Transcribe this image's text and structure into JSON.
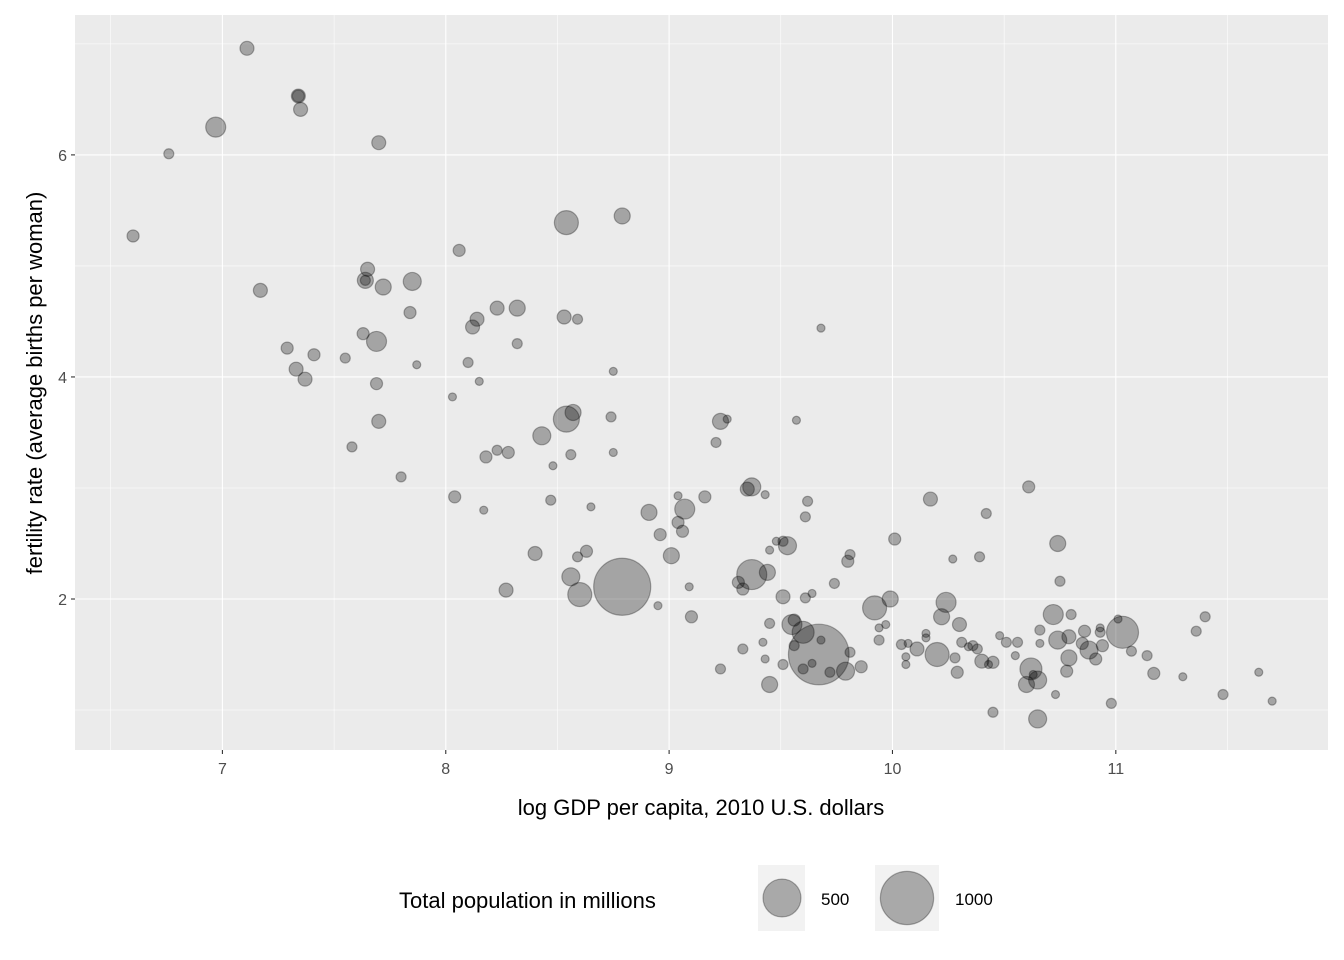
{
  "chart_data": {
    "type": "scatter",
    "title": "",
    "xlabel": "log GDP per capita, 2010 U.S. dollars",
    "ylabel": "fertility rate (average births per woman)",
    "xlim": [
      6.34,
      11.95
    ],
    "ylim": [
      0.64,
      7.26
    ],
    "x_ticks": [
      7,
      8,
      9,
      10,
      11
    ],
    "y_ticks": [
      2,
      4,
      6
    ],
    "grid": true,
    "point_color": "#000000",
    "point_alpha": 0.3,
    "legend": {
      "title": "Total population in millions",
      "placement": "bottom",
      "entries": [
        {
          "label": "500",
          "value": 500
        },
        {
          "label": "1000",
          "value": 1000
        }
      ]
    },
    "points": [
      [
        6.6,
        5.27,
        39
      ],
      [
        6.76,
        6.01,
        23
      ],
      [
        6.97,
        6.25,
        130
      ],
      [
        7.11,
        6.96,
        57
      ],
      [
        7.34,
        6.53,
        57
      ],
      [
        7.34,
        6.53,
        39
      ],
      [
        7.35,
        6.41,
        57
      ],
      [
        7.7,
        6.11,
        57
      ],
      [
        8.06,
        5.14,
        39
      ],
      [
        7.17,
        4.78,
        57
      ],
      [
        7.65,
        4.97,
        57
      ],
      [
        7.64,
        4.87,
        79
      ],
      [
        7.64,
        4.87,
        23
      ],
      [
        7.72,
        4.81,
        79
      ],
      [
        7.85,
        4.86,
        103
      ],
      [
        7.84,
        4.58,
        39
      ],
      [
        8.23,
        4.62,
        57
      ],
      [
        8.32,
        4.62,
        79
      ],
      [
        8.14,
        4.52,
        57
      ],
      [
        8.12,
        4.45,
        57
      ],
      [
        8.32,
        4.3,
        23
      ],
      [
        7.63,
        4.39,
        39
      ],
      [
        7.69,
        4.32,
        130
      ],
      [
        7.29,
        4.26,
        39
      ],
      [
        7.41,
        4.2,
        39
      ],
      [
        7.55,
        4.17,
        23
      ],
      [
        7.33,
        4.07,
        57
      ],
      [
        7.37,
        3.98,
        57
      ],
      [
        7.69,
        3.94,
        39
      ],
      [
        7.87,
        4.11,
        10
      ],
      [
        8.1,
        4.13,
        23
      ],
      [
        8.15,
        3.96,
        10
      ],
      [
        8.03,
        3.82,
        10
      ],
      [
        7.7,
        3.6,
        57
      ],
      [
        7.58,
        3.37,
        23
      ],
      [
        7.8,
        3.1,
        23
      ],
      [
        8.04,
        2.92,
        39
      ],
      [
        8.17,
        2.8,
        10
      ],
      [
        8.18,
        3.28,
        39
      ],
      [
        8.23,
        3.34,
        23
      ],
      [
        8.28,
        3.32,
        39
      ],
      [
        8.43,
        3.47,
        103
      ],
      [
        8.48,
        3.2,
        10
      ],
      [
        8.47,
        2.89,
        23
      ],
      [
        8.56,
        3.3,
        23
      ],
      [
        8.54,
        3.62,
        229
      ],
      [
        8.57,
        3.68,
        79
      ],
      [
        8.54,
        5.39,
        193
      ],
      [
        8.79,
        5.45,
        79
      ],
      [
        8.53,
        4.54,
        57
      ],
      [
        8.59,
        4.52,
        23
      ],
      [
        8.75,
        4.05,
        10
      ],
      [
        8.74,
        3.64,
        23
      ],
      [
        8.75,
        3.32,
        10
      ],
      [
        8.65,
        2.83,
        10
      ],
      [
        8.4,
        2.41,
        57
      ],
      [
        8.59,
        2.38,
        23
      ],
      [
        8.63,
        2.43,
        39
      ],
      [
        8.56,
        2.2,
        103
      ],
      [
        8.6,
        2.04,
        193
      ],
      [
        8.27,
        2.08,
        57
      ],
      [
        8.79,
        2.11,
        1150
      ],
      [
        8.95,
        1.94,
        10
      ],
      [
        8.91,
        2.78,
        79
      ],
      [
        8.96,
        2.58,
        39
      ],
      [
        9.01,
        2.39,
        79
      ],
      [
        9.04,
        2.93,
        10
      ],
      [
        9.07,
        2.81,
        130
      ],
      [
        9.04,
        2.69,
        39
      ],
      [
        9.06,
        2.61,
        39
      ],
      [
        9.09,
        2.11,
        10
      ],
      [
        9.1,
        1.84,
        39
      ],
      [
        9.16,
        2.92,
        39
      ],
      [
        9.21,
        3.41,
        23
      ],
      [
        9.23,
        3.6,
        79
      ],
      [
        9.26,
        3.62,
        10
      ],
      [
        9.23,
        1.37,
        23
      ],
      [
        9.37,
        3.01,
        103
      ],
      [
        9.35,
        2.99,
        57
      ],
      [
        9.43,
        2.94,
        10
      ],
      [
        9.57,
        3.61,
        10
      ],
      [
        9.68,
        4.44,
        10
      ],
      [
        9.62,
        2.88,
        23
      ],
      [
        9.61,
        2.74,
        23
      ],
      [
        9.48,
        2.52,
        10
      ],
      [
        9.51,
        2.52,
        23
      ],
      [
        9.53,
        2.48,
        103
      ],
      [
        9.45,
        2.44,
        10
      ],
      [
        9.37,
        2.22,
        309
      ],
      [
        9.44,
        2.24,
        79
      ],
      [
        9.31,
        2.15,
        39
      ],
      [
        9.33,
        2.09,
        39
      ],
      [
        9.51,
        2.02,
        57
      ],
      [
        9.61,
        2.01,
        23
      ],
      [
        9.64,
        2.05,
        10
      ],
      [
        9.74,
        2.14,
        23
      ],
      [
        9.8,
        2.34,
        39
      ],
      [
        9.81,
        2.4,
        23
      ],
      [
        9.45,
        1.78,
        23
      ],
      [
        9.55,
        1.77,
        130
      ],
      [
        9.56,
        1.81,
        39
      ],
      [
        9.6,
        1.7,
        160
      ],
      [
        9.67,
        1.5,
        1300
      ],
      [
        9.42,
        1.61,
        10
      ],
      [
        9.56,
        1.58,
        23
      ],
      [
        9.68,
        1.63,
        10
      ],
      [
        9.33,
        1.55,
        23
      ],
      [
        9.43,
        1.46,
        10
      ],
      [
        9.51,
        1.41,
        23
      ],
      [
        9.6,
        1.37,
        23
      ],
      [
        9.64,
        1.42,
        10
      ],
      [
        9.72,
        1.34,
        23
      ],
      [
        9.79,
        1.35,
        103
      ],
      [
        9.81,
        1.52,
        23
      ],
      [
        9.86,
        1.39,
        39
      ],
      [
        9.45,
        1.23,
        79
      ],
      [
        10.61,
        3.01,
        39
      ],
      [
        10.17,
        2.9,
        57
      ],
      [
        10.42,
        2.77,
        23
      ],
      [
        10.01,
        2.54,
        39
      ],
      [
        10.74,
        2.5,
        79
      ],
      [
        10.27,
        2.36,
        10
      ],
      [
        10.39,
        2.38,
        23
      ],
      [
        10.75,
        2.16,
        23
      ],
      [
        9.92,
        1.92,
        193
      ],
      [
        9.99,
        2.0,
        79
      ],
      [
        10.24,
        1.97,
        130
      ],
      [
        10.22,
        1.84,
        79
      ],
      [
        10.3,
        1.77,
        57
      ],
      [
        9.97,
        1.77,
        10
      ],
      [
        9.94,
        1.74,
        10
      ],
      [
        9.94,
        1.63,
        23
      ],
      [
        10.04,
        1.59,
        23
      ],
      [
        10.07,
        1.6,
        10
      ],
      [
        10.06,
        1.48,
        10
      ],
      [
        10.06,
        1.41,
        10
      ],
      [
        10.11,
        1.55,
        57
      ],
      [
        10.15,
        1.65,
        10
      ],
      [
        10.15,
        1.69,
        10
      ],
      [
        10.2,
        1.5,
        193
      ],
      [
        10.28,
        1.47,
        23
      ],
      [
        10.29,
        1.34,
        39
      ],
      [
        10.31,
        1.61,
        23
      ],
      [
        10.34,
        1.57,
        10
      ],
      [
        10.36,
        1.58,
        23
      ],
      [
        10.38,
        1.55,
        23
      ],
      [
        10.4,
        1.44,
        57
      ],
      [
        10.43,
        1.41,
        10
      ],
      [
        10.45,
        1.43,
        39
      ],
      [
        10.45,
        0.98,
        23
      ],
      [
        10.48,
        1.67,
        10
      ],
      [
        10.51,
        1.61,
        23
      ],
      [
        10.56,
        1.61,
        23
      ],
      [
        10.55,
        1.49,
        10
      ],
      [
        10.62,
        1.37,
        160
      ],
      [
        10.63,
        1.32,
        10
      ],
      [
        10.65,
        1.27,
        103
      ],
      [
        10.6,
        1.23,
        79
      ],
      [
        10.65,
        0.92,
        103
      ],
      [
        10.73,
        1.14,
        10
      ],
      [
        10.66,
        1.72,
        23
      ],
      [
        10.66,
        1.6,
        10
      ],
      [
        10.72,
        1.86,
        130
      ],
      [
        10.8,
        1.86,
        23
      ],
      [
        10.74,
        1.63,
        103
      ],
      [
        10.79,
        1.66,
        57
      ],
      [
        10.79,
        1.47,
        79
      ],
      [
        10.78,
        1.35,
        39
      ],
      [
        10.86,
        1.71,
        39
      ],
      [
        10.85,
        1.6,
        39
      ],
      [
        10.88,
        1.54,
        103
      ],
      [
        10.91,
        1.46,
        39
      ],
      [
        10.93,
        1.7,
        23
      ],
      [
        10.93,
        1.74,
        10
      ],
      [
        10.94,
        1.58,
        39
      ],
      [
        11.03,
        1.7,
        353
      ],
      [
        11.01,
        1.82,
        10
      ],
      [
        11.07,
        1.53,
        23
      ],
      [
        11.14,
        1.49,
        23
      ],
      [
        11.17,
        1.33,
        39
      ],
      [
        11.3,
        1.3,
        10
      ],
      [
        11.36,
        1.71,
        23
      ],
      [
        11.4,
        1.84,
        23
      ],
      [
        11.48,
        1.14,
        23
      ],
      [
        11.64,
        1.34,
        10
      ],
      [
        11.7,
        1.08,
        10
      ],
      [
        10.98,
        1.06,
        23
      ]
    ]
  }
}
